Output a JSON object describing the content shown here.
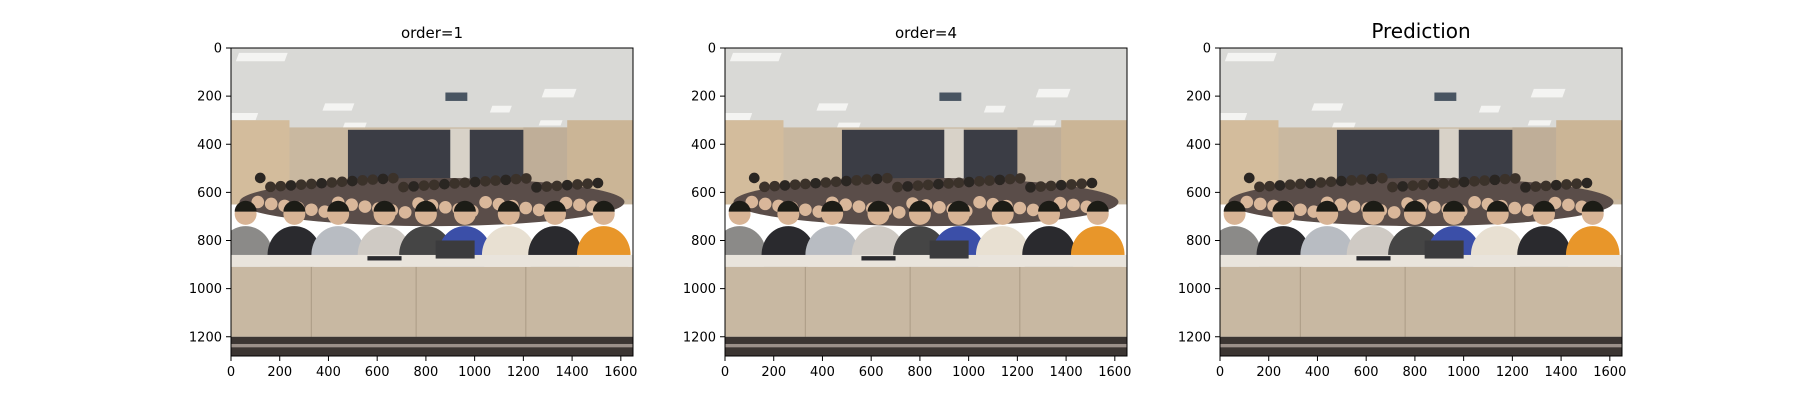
{
  "chart_data": [
    {
      "type": "image",
      "title": "order=1",
      "xlim": [
        0,
        1650
      ],
      "ylim": [
        1280,
        0
      ],
      "x_ticks": [
        0,
        200,
        400,
        600,
        800,
        1000,
        1200,
        1400,
        1600
      ],
      "y_ticks": [
        0,
        200,
        400,
        600,
        800,
        1000,
        1200
      ],
      "image_content": "classroom group photo, blurrier interpolation"
    },
    {
      "type": "image",
      "title": "order=4",
      "xlim": [
        0,
        1650
      ],
      "ylim": [
        1280,
        0
      ],
      "x_ticks": [
        0,
        200,
        400,
        600,
        800,
        1000,
        1200,
        1400,
        1600
      ],
      "y_ticks": [
        0,
        200,
        400,
        600,
        800,
        1000,
        1200
      ],
      "image_content": "classroom group photo, sharper interpolation"
    },
    {
      "type": "image",
      "title": "Prediction",
      "xlim": [
        0,
        1650
      ],
      "ylim": [
        1280,
        0
      ],
      "x_ticks": [
        0,
        200,
        400,
        600,
        800,
        1000,
        1200,
        1400,
        1600
      ],
      "y_ticks": [
        0,
        200,
        400,
        600,
        800,
        1000,
        1200
      ],
      "image_content": "classroom group photo, predicted upscaling"
    }
  ],
  "colors": {
    "ceiling": "#d9d9d6",
    "wall": "#c9b8a0",
    "window": "#3a3d45",
    "crowd": "#5a4d48",
    "front_row": "#8b8a88",
    "desk_top": "#e9e4dc",
    "desk_front": "#c8b8a2",
    "floor": "#3b3632",
    "orange_jacket": "#e8962a",
    "blue_jacket": "#3b4fa8",
    "black_jacket": "#2a2a2e",
    "light_lamp": "#f4f4f2"
  }
}
